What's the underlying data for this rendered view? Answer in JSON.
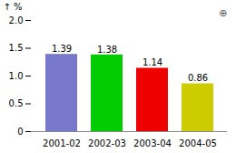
{
  "chart_data": {
    "type": "bar",
    "categories": [
      "2001-02",
      "2002-03",
      "2003-04",
      "2004-05"
    ],
    "values": [
      1.39,
      1.38,
      1.14,
      0.86
    ],
    "colors": [
      "#7777cc",
      "#00cc00",
      "#ee0000",
      "#cccc00"
    ],
    "data_labels": true,
    "ylabel": "%",
    "ylim": [
      0,
      2.0
    ],
    "yticks": [
      0,
      0.5,
      {
        "value": 1.0,
        "label": "1.0"
      },
      1.5,
      {
        "value": 2.0,
        "label": "2.0"
      }
    ],
    "grid": false,
    "annotations": [
      "⊕"
    ]
  }
}
